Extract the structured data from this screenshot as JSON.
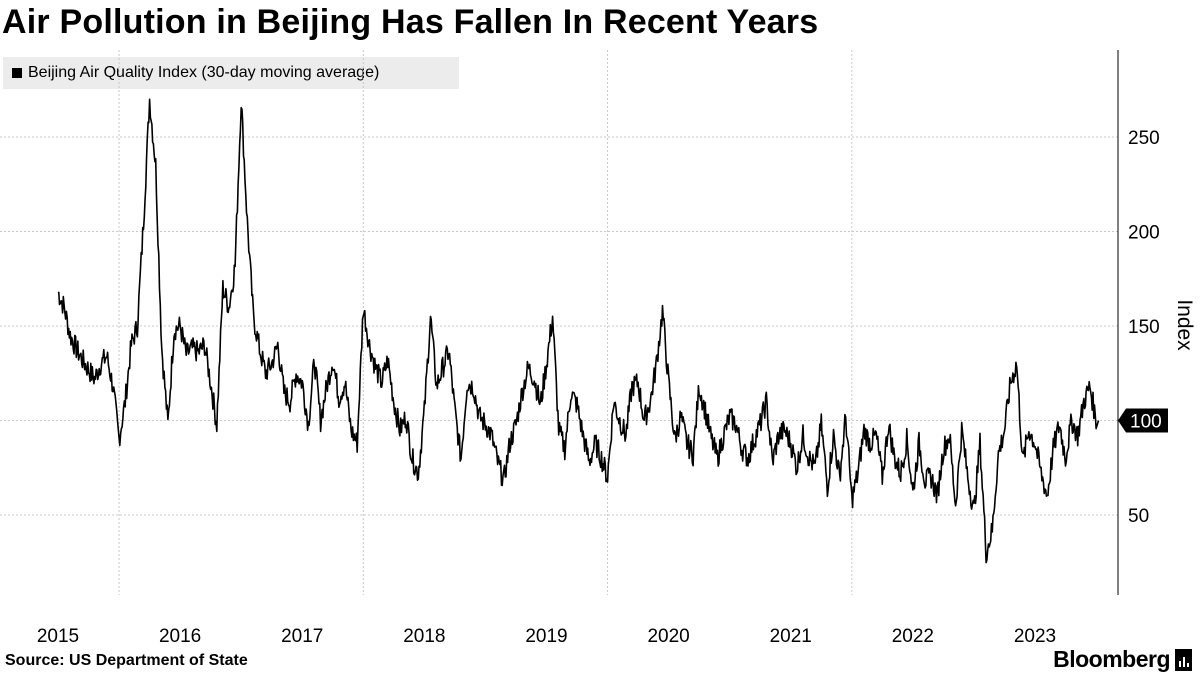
{
  "header": {
    "title": "Air Pollution in Beijing Has Fallen In Recent Years"
  },
  "footer": {
    "source": "Source: US Department of State",
    "brand": "Bloomberg"
  },
  "chart_data": {
    "type": "line",
    "title": "Air Pollution in Beijing Has Fallen In Recent Years",
    "legend": [
      "Beijing Air Quality Index (30-day moving average)"
    ],
    "legend_position": "top-left",
    "xlabel": "",
    "ylabel": "Index",
    "y_axis_side": "right",
    "ylim": [
      20,
      295
    ],
    "xlim": [
      2015.0,
      2023.9
    ],
    "grid": true,
    "y_ticks": [
      50,
      100,
      150,
      200,
      250
    ],
    "x_ticks": [
      "2015",
      "2016",
      "2017",
      "2018",
      "2019",
      "2020",
      "2021",
      "2022",
      "2023"
    ],
    "x_tick_positions": [
      2015.0,
      2016.0,
      2017.0,
      2018.0,
      2019.0,
      2020.0,
      2021.0,
      2022.0,
      2023.0
    ],
    "x_gridlines": [
      2015.5,
      2017.5,
      2019.5,
      2021.5
    ],
    "last_value_label": "100",
    "last_value": 100,
    "series": [
      {
        "name": "Beijing Air Quality Index (30-day moving average)",
        "color": "#000000",
        "x": [
          2015.0,
          2015.05,
          2015.1,
          2015.15,
          2015.2,
          2015.25,
          2015.3,
          2015.35,
          2015.4,
          2015.45,
          2015.5,
          2015.55,
          2015.6,
          2015.65,
          2015.7,
          2015.75,
          2015.8,
          2015.85,
          2015.9,
          2015.95,
          2016.0,
          2016.05,
          2016.1,
          2016.15,
          2016.2,
          2016.25,
          2016.3,
          2016.35,
          2016.4,
          2016.45,
          2016.5,
          2016.55,
          2016.6,
          2016.65,
          2016.7,
          2016.75,
          2016.8,
          2016.85,
          2016.9,
          2016.95,
          2017.0,
          2017.05,
          2017.1,
          2017.15,
          2017.2,
          2017.25,
          2017.3,
          2017.35,
          2017.4,
          2017.45,
          2017.5,
          2017.55,
          2017.6,
          2017.65,
          2017.7,
          2017.75,
          2017.8,
          2017.85,
          2017.9,
          2017.95,
          2018.0,
          2018.05,
          2018.1,
          2018.15,
          2018.2,
          2018.25,
          2018.3,
          2018.35,
          2018.4,
          2018.45,
          2018.5,
          2018.55,
          2018.6,
          2018.65,
          2018.7,
          2018.75,
          2018.8,
          2018.85,
          2018.9,
          2018.95,
          2019.0,
          2019.05,
          2019.1,
          2019.15,
          2019.2,
          2019.25,
          2019.3,
          2019.35,
          2019.4,
          2019.45,
          2019.5,
          2019.55,
          2019.6,
          2019.65,
          2019.7,
          2019.75,
          2019.8,
          2019.85,
          2019.9,
          2019.95,
          2020.0,
          2020.05,
          2020.1,
          2020.15,
          2020.2,
          2020.25,
          2020.3,
          2020.35,
          2020.4,
          2020.45,
          2020.5,
          2020.55,
          2020.6,
          2020.65,
          2020.7,
          2020.75,
          2020.8,
          2020.85,
          2020.9,
          2020.95,
          2021.0,
          2021.05,
          2021.1,
          2021.15,
          2021.2,
          2021.25,
          2021.3,
          2021.35,
          2021.4,
          2021.45,
          2021.5,
          2021.55,
          2021.6,
          2021.65,
          2021.7,
          2021.75,
          2021.8,
          2021.85,
          2021.9,
          2021.95,
          2022.0,
          2022.05,
          2022.1,
          2022.15,
          2022.2,
          2022.25,
          2022.3,
          2022.35,
          2022.4,
          2022.45,
          2022.5,
          2022.55,
          2022.6,
          2022.65,
          2022.7,
          2022.75,
          2022.8,
          2022.85,
          2022.9,
          2022.95,
          2023.0,
          2023.05,
          2023.1,
          2023.15,
          2023.2,
          2023.25,
          2023.3,
          2023.35,
          2023.4,
          2023.45,
          2023.5
        ],
        "values": [
          168,
          160,
          145,
          138,
          132,
          127,
          122,
          130,
          134,
          118,
          90,
          110,
          140,
          150,
          205,
          270,
          235,
          138,
          98,
          148,
          150,
          135,
          138,
          136,
          140,
          120,
          98,
          170,
          160,
          182,
          270,
          205,
          155,
          138,
          125,
          130,
          140,
          115,
          110,
          125,
          120,
          98,
          132,
          100,
          118,
          132,
          112,
          120,
          95,
          88,
          160,
          140,
          128,
          120,
          132,
          110,
          95,
          102,
          80,
          72,
          105,
          155,
          118,
          128,
          137,
          105,
          80,
          120,
          118,
          102,
          98,
          92,
          78,
          68,
          88,
          98,
          115,
          128,
          122,
          108,
          130,
          155,
          95,
          85,
          115,
          108,
          92,
          78,
          88,
          80,
          70,
          110,
          100,
          92,
          118,
          120,
          100,
          110,
          130,
          158,
          120,
          90,
          102,
          88,
          82,
          118,
          105,
          90,
          80,
          92,
          102,
          98,
          85,
          80,
          90,
          98,
          110,
          78,
          92,
          95,
          88,
          75,
          92,
          80,
          75,
          98,
          65,
          92,
          70,
          102,
          58,
          72,
          95,
          88,
          92,
          70,
          98,
          80,
          72,
          90,
          62,
          88,
          68,
          70,
          60,
          85,
          92,
          55,
          95,
          70,
          52,
          88,
          30,
          42,
          82,
          95,
          120,
          130,
          78,
          95,
          88,
          72,
          60,
          85,
          98,
          80,
          100,
          92,
          110,
          118,
          100
        ]
      }
    ]
  }
}
